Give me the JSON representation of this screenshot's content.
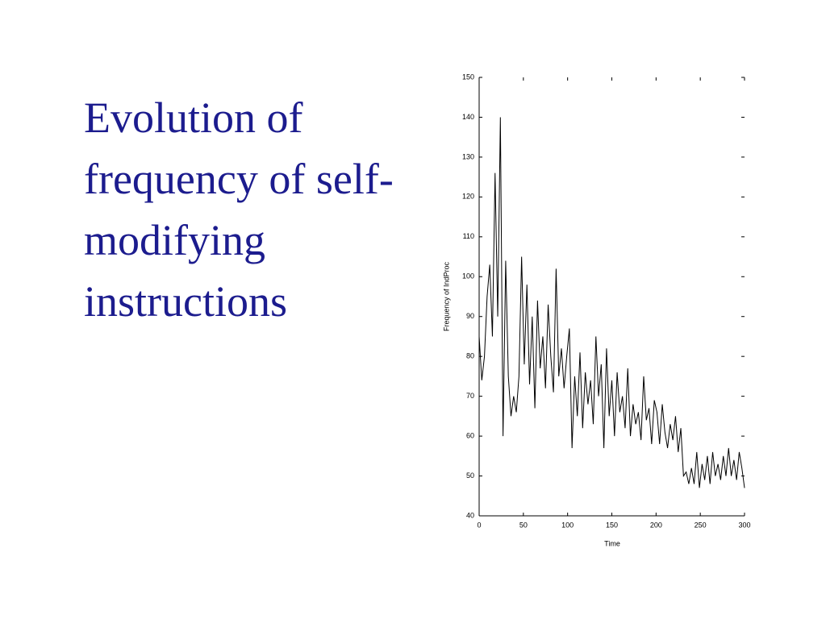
{
  "slide_title": "Evolution of frequency of self-modifying instructions",
  "chart_data": {
    "type": "line",
    "xlabel": "Time",
    "ylabel": "Frequency of IndProc",
    "xlim": [
      0,
      300
    ],
    "xticks": [
      0,
      50,
      100,
      150,
      200,
      250,
      300
    ],
    "ylim": [
      40,
      150
    ],
    "yticks": [
      40,
      50,
      60,
      70,
      80,
      90,
      100,
      110,
      120,
      130,
      140,
      150
    ],
    "color": "#000000",
    "x": [
      0,
      3,
      6,
      9,
      12,
      15,
      18,
      21,
      24,
      27,
      30,
      33,
      36,
      39,
      42,
      45,
      48,
      51,
      54,
      57,
      60,
      63,
      66,
      69,
      72,
      75,
      78,
      81,
      84,
      87,
      90,
      93,
      96,
      99,
      102,
      105,
      108,
      111,
      114,
      117,
      120,
      123,
      126,
      129,
      132,
      135,
      138,
      141,
      144,
      147,
      150,
      153,
      156,
      159,
      162,
      165,
      168,
      171,
      174,
      177,
      180,
      183,
      186,
      189,
      192,
      195,
      198,
      201,
      204,
      207,
      210,
      213,
      216,
      219,
      222,
      225,
      228,
      231,
      234,
      237,
      240,
      243,
      246,
      249,
      252,
      255,
      258,
      261,
      264,
      267,
      270,
      273,
      276,
      279,
      282,
      285,
      288,
      291,
      294,
      297,
      300
    ],
    "values": [
      85,
      74,
      80,
      95,
      103,
      85,
      126,
      90,
      140,
      60,
      104,
      75,
      65,
      70,
      66,
      75,
      105,
      78,
      98,
      73,
      90,
      67,
      94,
      77,
      85,
      72,
      93,
      80,
      71,
      102,
      75,
      82,
      72,
      80,
      87,
      57,
      75,
      65,
      81,
      62,
      76,
      68,
      74,
      63,
      85,
      70,
      78,
      57,
      82,
      65,
      74,
      60,
      76,
      66,
      70,
      62,
      77,
      60,
      68,
      63,
      66,
      59,
      75,
      64,
      67,
      58,
      69,
      66,
      58,
      68,
      61,
      57,
      63,
      59,
      65,
      56,
      62,
      50,
      51,
      48,
      52,
      48,
      56,
      47,
      53,
      49,
      55,
      48,
      56,
      50,
      53,
      49,
      55,
      50,
      57,
      50,
      54,
      49,
      56,
      52,
      47
    ]
  }
}
